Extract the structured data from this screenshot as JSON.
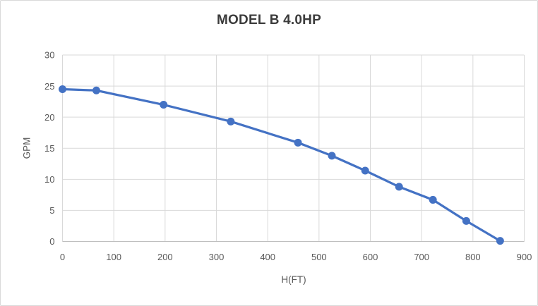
{
  "frame": {
    "background": "#ffffff",
    "border_color": "#d9d9d9"
  },
  "chart_data": {
    "type": "line",
    "title": "MODEL B 4.0HP",
    "xlabel": "H(FT)",
    "ylabel": "GPM",
    "x": [
      0,
      66,
      197,
      328,
      459,
      525,
      590,
      656,
      722,
      787,
      853
    ],
    "values": [
      24.5,
      24.3,
      22.0,
      19.3,
      15.9,
      13.8,
      11.4,
      8.8,
      6.7,
      3.3,
      0.1
    ],
    "xlim": [
      0,
      900
    ],
    "ylim": [
      0,
      30
    ],
    "x_ticks": [
      0,
      100,
      200,
      300,
      400,
      500,
      600,
      700,
      800,
      900
    ],
    "y_ticks": [
      0,
      5,
      10,
      15,
      20,
      25,
      30
    ],
    "grid": true,
    "legend": "none",
    "style": {
      "line_color": "#4472c4",
      "marker_color": "#4472c4",
      "marker": "circle",
      "marker_radius": 5.5,
      "line_width": 3.25,
      "gridline_color": "#d9d9d9",
      "axis_line_color": "#bfbfbf",
      "tick_label_color": "#595959",
      "axis_title_color": "#595959",
      "title_color": "#3b3b3b"
    }
  }
}
